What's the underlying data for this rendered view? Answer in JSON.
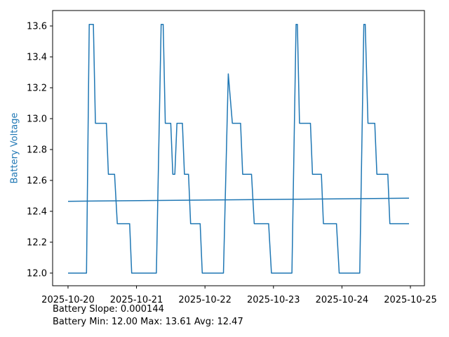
{
  "chart_data": {
    "type": "line",
    "title": "",
    "xlabel": "",
    "ylabel": "Battery Voltage",
    "ylabel_color": "#1f77b4",
    "line_color": "#1f77b4",
    "axis_color": "#000000",
    "background_color": "#ffffff",
    "grid": false,
    "legend": "none",
    "xlim_days": [
      -0.225,
      5.205
    ],
    "ylim": [
      11.918,
      13.7
    ],
    "x_ticks": [
      {
        "t": 0,
        "label": "2025-10-20"
      },
      {
        "t": 1,
        "label": "2025-10-21"
      },
      {
        "t": 2,
        "label": "2025-10-22"
      },
      {
        "t": 3,
        "label": "2025-10-23"
      },
      {
        "t": 4,
        "label": "2025-10-24"
      },
      {
        "t": 5,
        "label": "2025-10-25"
      }
    ],
    "y_ticks": [
      {
        "v": 12.0,
        "label": "12.0"
      },
      {
        "v": 12.2,
        "label": "12.2"
      },
      {
        "v": 12.4,
        "label": "12.4"
      },
      {
        "v": 12.6,
        "label": "12.6"
      },
      {
        "v": 12.8,
        "label": "12.8"
      },
      {
        "v": 13.0,
        "label": "13.0"
      },
      {
        "v": 13.2,
        "label": "13.2"
      },
      {
        "v": 13.4,
        "label": "13.4"
      },
      {
        "v": 13.6,
        "label": "13.6"
      }
    ],
    "series": [
      {
        "name": "battery-voltage-line",
        "points": [
          [
            0.0,
            12.0
          ],
          [
            0.27,
            12.0
          ],
          [
            0.31,
            13.61
          ],
          [
            0.37,
            13.61
          ],
          [
            0.4,
            12.97
          ],
          [
            0.56,
            12.97
          ],
          [
            0.59,
            12.64
          ],
          [
            0.68,
            12.64
          ],
          [
            0.72,
            12.32
          ],
          [
            0.9,
            12.32
          ],
          [
            0.93,
            12.0
          ],
          [
            1.29,
            12.0
          ],
          [
            1.36,
            13.61
          ],
          [
            1.39,
            13.61
          ],
          [
            1.42,
            12.97
          ],
          [
            1.5,
            12.97
          ],
          [
            1.53,
            12.64
          ],
          [
            1.56,
            12.64
          ],
          [
            1.59,
            12.97
          ],
          [
            1.67,
            12.97
          ],
          [
            1.7,
            12.64
          ],
          [
            1.76,
            12.64
          ],
          [
            1.79,
            12.32
          ],
          [
            1.93,
            12.32
          ],
          [
            1.96,
            12.0
          ],
          [
            2.27,
            12.0
          ],
          [
            2.34,
            13.29
          ],
          [
            2.4,
            12.97
          ],
          [
            2.52,
            12.97
          ],
          [
            2.55,
            12.64
          ],
          [
            2.68,
            12.64
          ],
          [
            2.72,
            12.32
          ],
          [
            2.93,
            12.32
          ],
          [
            2.97,
            12.0
          ],
          [
            3.27,
            12.0
          ],
          [
            3.33,
            13.61
          ],
          [
            3.35,
            13.61
          ],
          [
            3.38,
            12.97
          ],
          [
            3.54,
            12.97
          ],
          [
            3.57,
            12.64
          ],
          [
            3.7,
            12.64
          ],
          [
            3.73,
            12.32
          ],
          [
            3.92,
            12.32
          ],
          [
            3.96,
            12.0
          ],
          [
            4.26,
            12.0
          ],
          [
            4.32,
            13.61
          ],
          [
            4.34,
            13.61
          ],
          [
            4.38,
            12.97
          ],
          [
            4.48,
            12.97
          ],
          [
            4.51,
            12.64
          ],
          [
            4.67,
            12.64
          ],
          [
            4.7,
            12.32
          ],
          [
            4.98,
            12.32
          ]
        ]
      },
      {
        "name": "trend-line",
        "points": [
          [
            0.0,
            12.465
          ],
          [
            4.98,
            12.485
          ]
        ]
      }
    ],
    "annotations": [
      "Battery Slope: 0.000144",
      "Battery Min: 12.00 Max: 13.61 Avg: 12.47"
    ],
    "stats": {
      "slope": "0.000144",
      "min": "12.00",
      "max": "13.61",
      "avg": "12.47"
    }
  }
}
